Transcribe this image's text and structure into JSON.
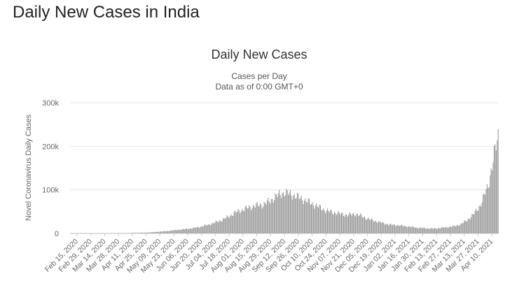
{
  "page": {
    "heading": "Daily New Cases in India"
  },
  "chart_data": {
    "type": "bar",
    "title": "Daily New Cases",
    "subtitle_lines": [
      "Cases per Day",
      "Data as of 0:00 GMT+0"
    ],
    "ylabel": "Novel Coronavirus Daily Cases",
    "xlabel": "",
    "ylim": [
      0,
      300000
    ],
    "y_ticks": [
      0,
      100000,
      200000,
      300000
    ],
    "y_tick_labels": [
      "0",
      "100k",
      "200k",
      "300k"
    ],
    "x_tick_labels": [
      "Feb 15, 2020",
      "Feb 29, 2020",
      "Mar 14, 2020",
      "Mar 28, 2020",
      "Apr 11, 2020",
      "Apr 25, 2020",
      "May 09, 2020",
      "May 23, 2020",
      "Jun 06, 2020",
      "Jun 20, 2020",
      "Jul 04, 2020",
      "Jul 18, 2020",
      "Aug 01, 2020",
      "Aug 15, 2020",
      "Aug 29, 2020",
      "Sep 12, 2020",
      "Sep 26, 2020",
      "Oct 10, 2020",
      "Oct 24, 2020",
      "Nov 07, 2020",
      "Nov 21, 2020",
      "Dec 05, 2020",
      "Dec 19, 2020",
      "Jan 02, 2021",
      "Jan 16, 2021",
      "Jan 30, 2021",
      "Feb 13, 2021",
      "Feb 27, 2021",
      "Mar 13, 2021",
      "Mar 27, 2021",
      "Apr 10, 2021"
    ],
    "x_start": "2020-02-15",
    "x_end": "2021-04-16",
    "weekly": {
      "week_starts": [
        "2020-02-15",
        "2020-02-22",
        "2020-02-29",
        "2020-03-07",
        "2020-03-14",
        "2020-03-21",
        "2020-03-28",
        "2020-04-04",
        "2020-04-11",
        "2020-04-18",
        "2020-04-25",
        "2020-05-02",
        "2020-05-09",
        "2020-05-16",
        "2020-05-23",
        "2020-05-30",
        "2020-06-06",
        "2020-06-13",
        "2020-06-20",
        "2020-06-27",
        "2020-07-04",
        "2020-07-11",
        "2020-07-18",
        "2020-07-25",
        "2020-08-01",
        "2020-08-08",
        "2020-08-15",
        "2020-08-22",
        "2020-08-29",
        "2020-09-05",
        "2020-09-12",
        "2020-09-19",
        "2020-09-26",
        "2020-10-03",
        "2020-10-10",
        "2020-10-17",
        "2020-10-24",
        "2020-10-31",
        "2020-11-07",
        "2020-11-14",
        "2020-11-21",
        "2020-11-28",
        "2020-12-05",
        "2020-12-12",
        "2020-12-19",
        "2020-12-26",
        "2021-01-02",
        "2021-01-09",
        "2021-01-16",
        "2021-01-23",
        "2021-01-30",
        "2021-02-06",
        "2021-02-13",
        "2021-02-20",
        "2021-02-27",
        "2021-03-06",
        "2021-03-13",
        "2021-03-20",
        "2021-03-27",
        "2021-04-03",
        "2021-04-10"
      ],
      "daily_cases": [
        0,
        0,
        0,
        10,
        15,
        50,
        150,
        500,
        1000,
        1300,
        1700,
        2500,
        3500,
        5000,
        6500,
        8500,
        10000,
        12000,
        15000,
        19000,
        24000,
        30000,
        38000,
        48000,
        54000,
        60000,
        64000,
        66000,
        75000,
        87000,
        94000,
        90000,
        83000,
        76000,
        68000,
        60000,
        52000,
        48000,
        45000,
        42000,
        45000,
        40000,
        33000,
        28000,
        24000,
        20000,
        19000,
        17000,
        15000,
        13000,
        12000,
        11000,
        12000,
        14000,
        16000,
        20000,
        30000,
        45000,
        68000,
        110000,
        190000
      ]
    },
    "series": [
      {
        "name": "Daily Cases",
        "color": "#999999"
      }
    ],
    "grid": true,
    "legend": "none"
  }
}
